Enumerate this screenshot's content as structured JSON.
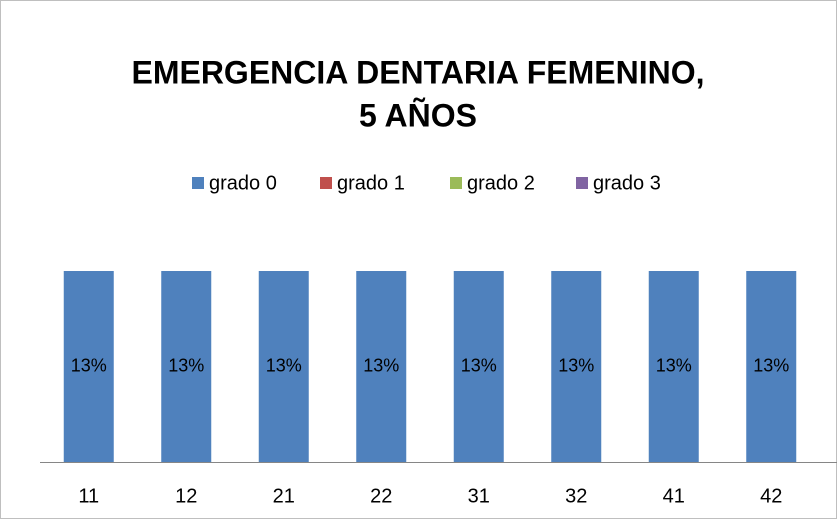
{
  "chart_data": {
    "type": "stacked_bar",
    "title": [
      "EMERGENCIA DENTARIA FEMENINO,",
      "5 AÑOS"
    ],
    "categories": [
      "11",
      "12",
      "21",
      "22",
      "31",
      "32",
      "41",
      "42"
    ],
    "series": [
      {
        "name": "grado 0",
        "color": "#4f81bd",
        "values": [
          13,
          13,
          13,
          13,
          13,
          13,
          13,
          13
        ],
        "value_labels": [
          "13%",
          "13%",
          "13%",
          "13%",
          "13%",
          "13%",
          "13%",
          "13%"
        ]
      },
      {
        "name": "grado 1",
        "color": "#c0504d",
        "values": [
          0,
          0,
          0,
          0,
          0,
          0,
          0,
          0
        ]
      },
      {
        "name": "grado 2",
        "color": "#9bbb59",
        "values": [
          0,
          0,
          0,
          0,
          0,
          0,
          0,
          0
        ]
      },
      {
        "name": "grado 3",
        "color": "#8064a2",
        "values": [
          0,
          0,
          0,
          0,
          0,
          0,
          0,
          0
        ]
      }
    ],
    "legend": "top"
  }
}
